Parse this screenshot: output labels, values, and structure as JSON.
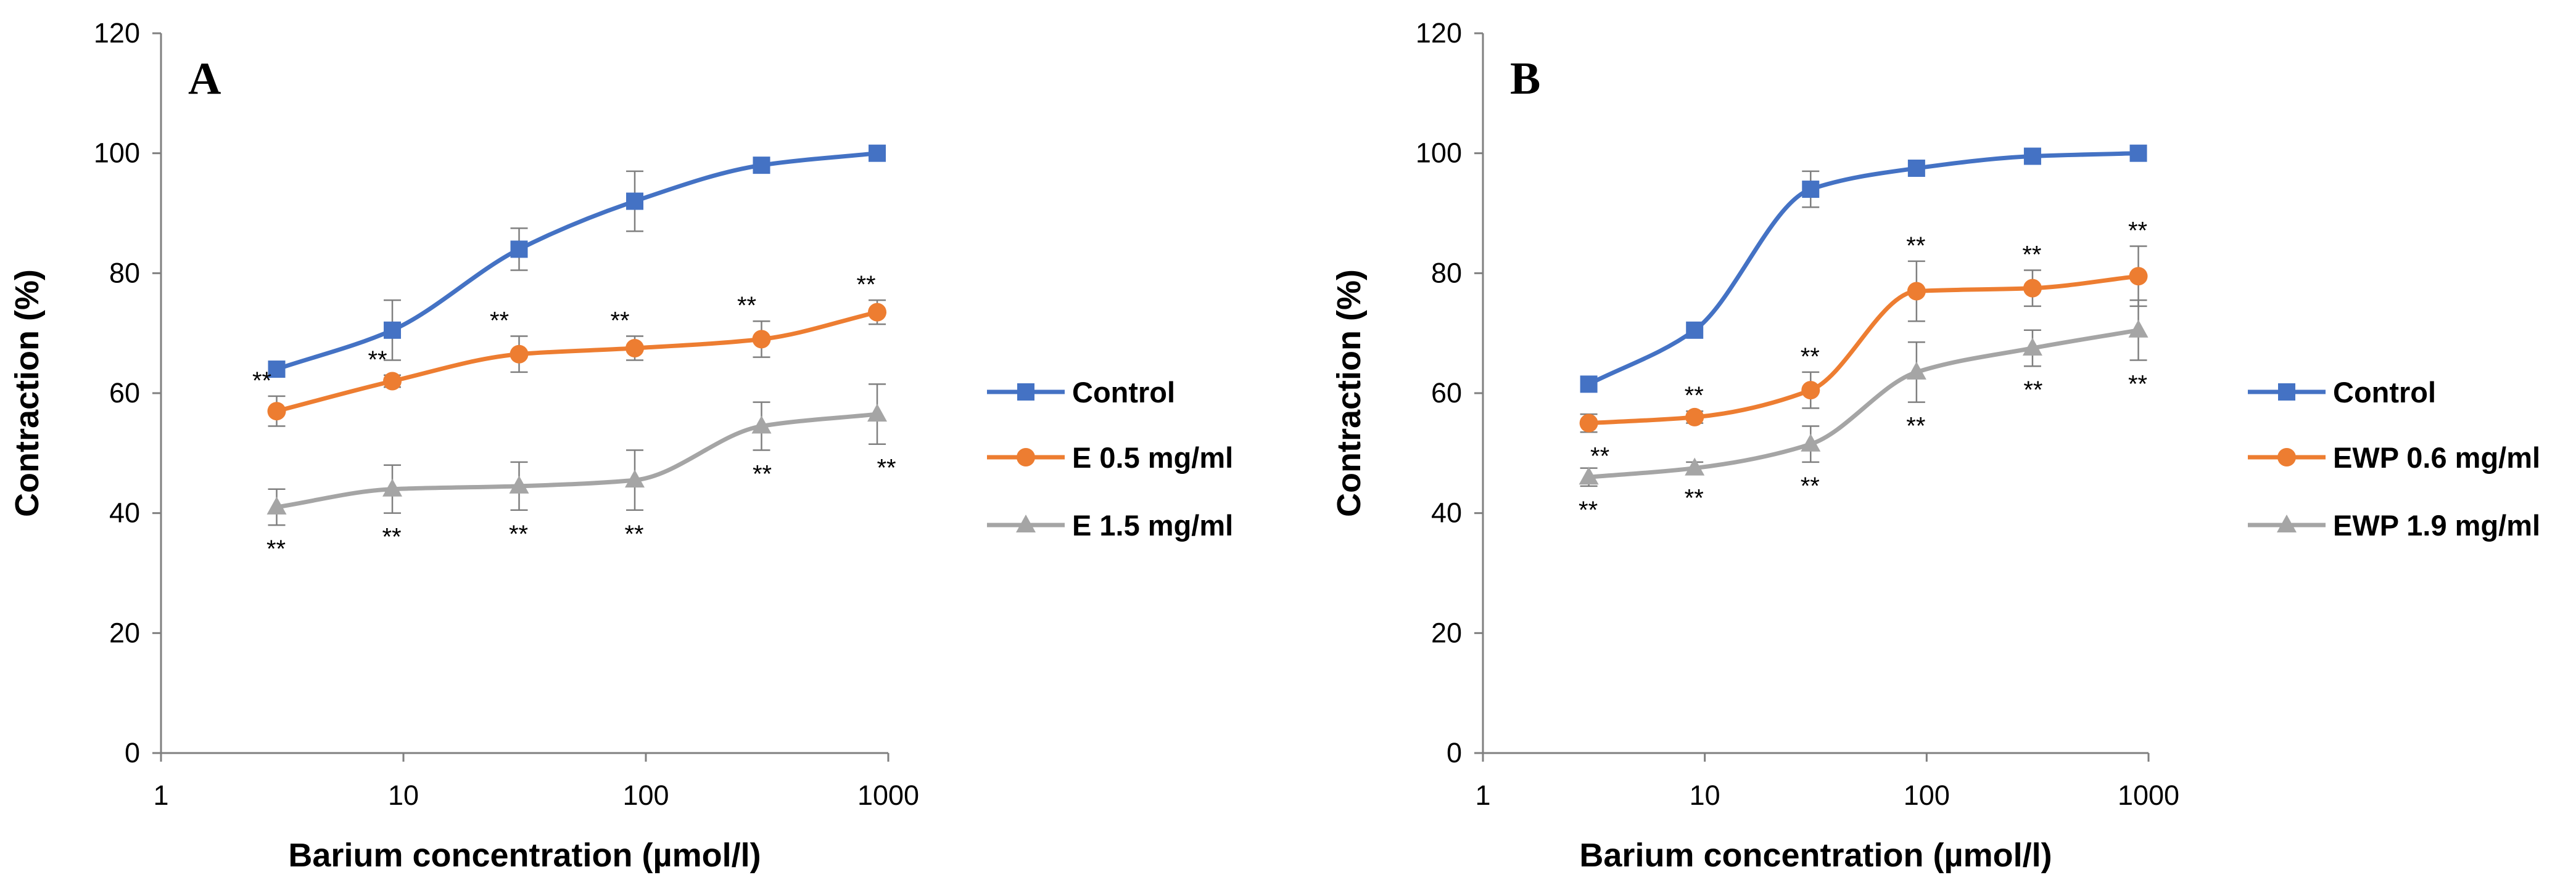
{
  "chart_data": [
    {
      "type": "line",
      "panel_label": "A",
      "xlabel": "Barium concentration (µmol/l)",
      "ylabel": "Contraction (%)",
      "xscale": "log",
      "xlim": [
        1,
        1000
      ],
      "ylim": [
        0,
        120
      ],
      "xticks": [
        "1",
        "10",
        "100",
        "1000"
      ],
      "yticks": [
        "0",
        "20",
        "40",
        "60",
        "80",
        "100",
        "120"
      ],
      "grid": false,
      "legend_position": "right",
      "x": [
        3,
        9,
        30,
        90,
        300,
        900
      ],
      "series": [
        {
          "name": "Control",
          "color": "#4472C4",
          "marker": "square",
          "values": [
            64,
            70.5,
            84,
            92,
            98,
            100
          ],
          "errors": [
            0,
            5,
            3.5,
            5,
            1,
            0
          ],
          "significance": [
            "",
            "",
            "",
            "",
            "",
            ""
          ]
        },
        {
          "name": "E 0.5 mg/ml",
          "color": "#ED7D31",
          "marker": "circle",
          "values": [
            57,
            62,
            66.5,
            67.5,
            69,
            73.5
          ],
          "errors": [
            2.5,
            1,
            3,
            2,
            3,
            2
          ],
          "significance": [
            "**",
            "**",
            "**",
            "**",
            "**",
            "**"
          ]
        },
        {
          "name": "E 1.5 mg/ml",
          "color": "#A5A5A5",
          "marker": "triangle",
          "values": [
            41,
            44,
            44.5,
            45.5,
            54.5,
            56.5
          ],
          "errors": [
            3,
            4,
            4,
            5,
            4,
            5
          ],
          "significance": [
            "**",
            "**",
            "**",
            "**",
            "**",
            "**"
          ]
        }
      ]
    },
    {
      "type": "line",
      "panel_label": "B",
      "xlabel": "Barium concentration (µmol/l)",
      "ylabel": "Contraction (%)",
      "xscale": "log",
      "xlim": [
        1,
        1000
      ],
      "ylim": [
        0,
        120
      ],
      "xticks": [
        "1",
        "10",
        "100",
        "1000"
      ],
      "yticks": [
        "0",
        "20",
        "40",
        "60",
        "80",
        "100",
        "120"
      ],
      "grid": false,
      "legend_position": "right",
      "x": [
        3,
        9,
        30,
        90,
        300,
        900
      ],
      "series": [
        {
          "name": "Control",
          "color": "#4472C4",
          "marker": "square",
          "values": [
            61.5,
            70.5,
            94,
            97.5,
            99.5,
            100
          ],
          "errors": [
            0,
            0,
            3,
            0,
            0,
            0
          ],
          "significance": [
            "",
            "",
            "",
            "",
            "",
            ""
          ]
        },
        {
          "name": "EWP 0.6 mg/ml",
          "color": "#ED7D31",
          "marker": "circle",
          "values": [
            55,
            56,
            60.5,
            77,
            77.5,
            79.5
          ],
          "errors": [
            1.5,
            1,
            3,
            5,
            3,
            5
          ],
          "significance": [
            "**",
            "**",
            "**",
            "**",
            "**",
            "**"
          ]
        },
        {
          "name": "EWP 1.9 mg/ml",
          "color": "#A5A5A5",
          "marker": "triangle",
          "values": [
            46,
            47.5,
            51.5,
            63.5,
            67.5,
            70.5
          ],
          "errors": [
            1.5,
            1,
            3,
            5,
            3,
            5
          ],
          "significance": [
            "**",
            "**",
            "**",
            "**",
            "**",
            "**"
          ]
        }
      ]
    }
  ]
}
